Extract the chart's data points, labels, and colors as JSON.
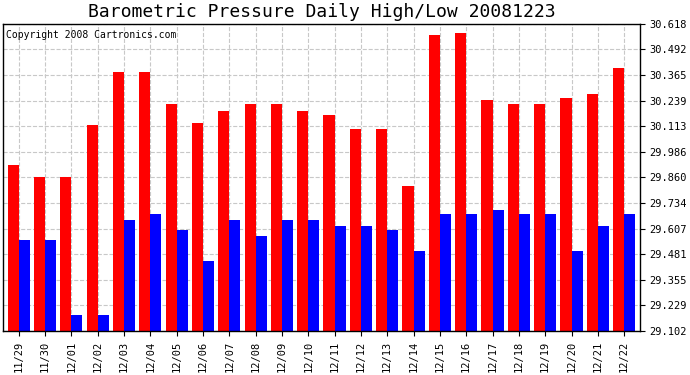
{
  "title": "Barometric Pressure Daily High/Low 20081223",
  "copyright": "Copyright 2008 Cartronics.com",
  "dates": [
    "11/29",
    "11/30",
    "12/01",
    "12/02",
    "12/03",
    "12/04",
    "12/05",
    "12/06",
    "12/07",
    "12/08",
    "12/09",
    "12/10",
    "12/11",
    "12/12",
    "12/13",
    "12/14",
    "12/15",
    "12/16",
    "12/17",
    "12/18",
    "12/19",
    "12/20",
    "12/21",
    "12/22"
  ],
  "highs": [
    29.92,
    29.86,
    29.86,
    30.12,
    30.38,
    30.38,
    30.22,
    30.13,
    30.19,
    30.22,
    30.22,
    30.19,
    30.17,
    30.1,
    30.1,
    29.82,
    30.56,
    30.57,
    30.24,
    30.22,
    30.22,
    30.25,
    30.27,
    30.4
  ],
  "lows": [
    29.55,
    29.55,
    29.18,
    29.18,
    29.65,
    29.68,
    29.6,
    29.45,
    29.65,
    29.57,
    29.65,
    29.65,
    29.62,
    29.62,
    29.6,
    29.5,
    29.68,
    29.68,
    29.7,
    29.68,
    29.68,
    29.5,
    29.62,
    29.68
  ],
  "high_color": "#ff0000",
  "low_color": "#0000ff",
  "bg_color": "#ffffff",
  "grid_color": "#c8c8c8",
  "ymin": 29.102,
  "ymax": 30.618,
  "yticks": [
    29.102,
    29.229,
    29.355,
    29.481,
    29.607,
    29.734,
    29.86,
    29.986,
    30.113,
    30.239,
    30.365,
    30.492,
    30.618
  ],
  "bar_width": 0.42,
  "title_fontsize": 13,
  "tick_fontsize": 7.5,
  "copyright_fontsize": 7
}
